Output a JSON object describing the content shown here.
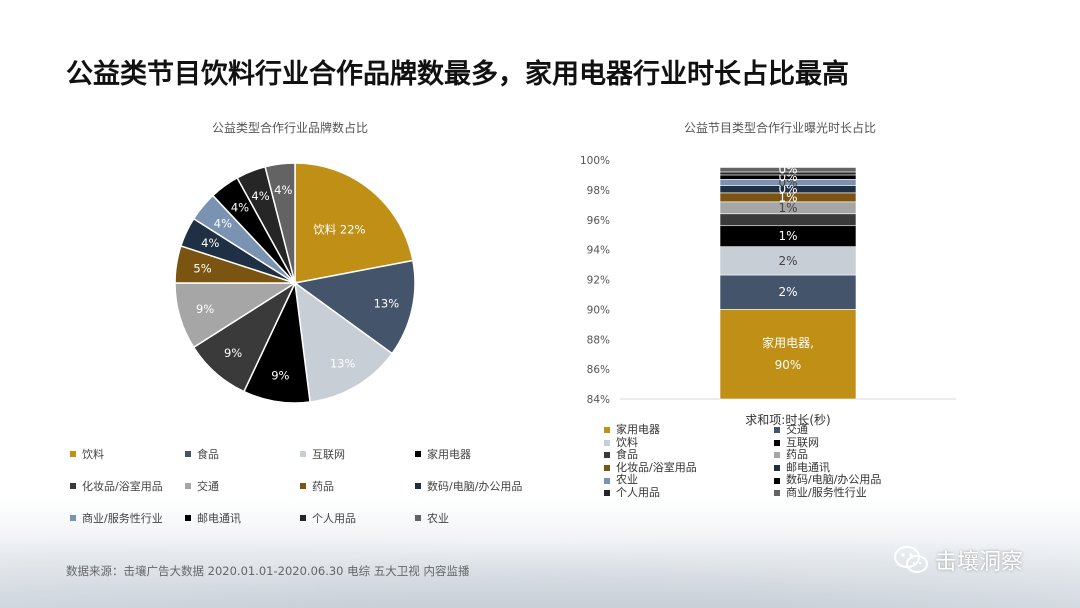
{
  "title": "公益类节目饮料行业合作品牌数最多，家用电器行业时长占比最高",
  "footer": "数据来源：击壤广告大数据 2020.01.01-2020.06.30 电综 五大卫视 内容监播",
  "watermark": "击壤洞察",
  "colors": {
    "饮料": "#bf8f16",
    "食品": "#44546a",
    "互联网": "#c7ced6",
    "家用电器": "#000000",
    "化妆品/浴室用品": "#3a3a3a",
    "交通": "#a6a6a6",
    "药品": "#7a5410",
    "数码/电脑/办公用品": "#1f3044",
    "商业/服务性行业": "#7a93b3",
    "邮电通讯": "#000000",
    "个人用品": "#262626",
    "农业": "#636363"
  },
  "chart_data": [
    {
      "type": "pie",
      "title": "公益类型合作行业品牌数占比",
      "slices": [
        {
          "name": "饮料",
          "value": 22,
          "label": "饮料 22%"
        },
        {
          "name": "食品",
          "value": 13,
          "label": "13%"
        },
        {
          "name": "互联网",
          "value": 13,
          "label": "13%"
        },
        {
          "name": "家用电器",
          "value": 9,
          "label": "9%"
        },
        {
          "name": "化妆品/浴室用品",
          "value": 9,
          "label": "9%"
        },
        {
          "name": "交通",
          "value": 9,
          "label": "9%"
        },
        {
          "name": "药品",
          "value": 5,
          "label": "5%"
        },
        {
          "name": "数码/电脑/办公用品",
          "value": 4,
          "label": "4%"
        },
        {
          "name": "商业/服务性行业",
          "value": 4,
          "label": "4%"
        },
        {
          "name": "邮电通讯",
          "value": 4,
          "label": "4%"
        },
        {
          "name": "个人用品",
          "value": 4,
          "label": "4%"
        },
        {
          "name": "农业",
          "value": 4,
          "label": "4%"
        }
      ],
      "legend": [
        "饮料",
        "食品",
        "互联网",
        "家用电器",
        "化妆品/浴室用品",
        "交通",
        "药品",
        "数码/电脑/办公用品",
        "商业/服务性行业",
        "邮电通讯",
        "个人用品",
        "农业"
      ]
    },
    {
      "type": "bar",
      "stacked": true,
      "title": "公益节目类型合作行业曝光时长占比",
      "xlabel": "求和项:时长(秒)",
      "ylim": [
        84,
        100
      ],
      "yticks": [
        "84%",
        "86%",
        "88%",
        "90%",
        "92%",
        "94%",
        "96%",
        "98%",
        "100%"
      ],
      "segments": [
        {
          "name": "家用电器",
          "color": "#bf8f16",
          "value": 90,
          "label": "家用电器,\n90%"
        },
        {
          "name": "交通",
          "color": "#44546a",
          "value": 2.3,
          "label": "2%"
        },
        {
          "name": "饮料",
          "color": "#c7ced6",
          "value": 1.9,
          "label": "2%"
        },
        {
          "name": "互联网",
          "color": "#000000",
          "value": 1.4,
          "label": "1%"
        },
        {
          "name": "食品",
          "color": "#3a3a3a",
          "value": 0.8,
          "label": ""
        },
        {
          "name": "药品",
          "color": "#a6a6a6",
          "value": 0.8,
          "label": "1%"
        },
        {
          "name": "化妆品/浴室用品",
          "color": "#7a5410",
          "value": 0.6,
          "label": "1%"
        },
        {
          "name": "邮电通讯",
          "color": "#1f3044",
          "value": 0.5,
          "label": "0%"
        },
        {
          "name": "农业",
          "color": "#7a93b3",
          "value": 0.4,
          "label": "0%"
        },
        {
          "name": "数码/电脑/办公用品",
          "color": "#000000",
          "value": 0.3,
          "label": "0%"
        },
        {
          "name": "个人用品",
          "color": "#262626",
          "value": 0.2,
          "label": ""
        },
        {
          "name": "商业/服务性行业",
          "color": "#636363",
          "value": 0.3,
          "label": "0%"
        }
      ],
      "legend": [
        "家用电器",
        "交通",
        "饮料",
        "互联网",
        "食品",
        "药品",
        "化妆品/浴室用品",
        "邮电通讯",
        "农业",
        "数码/电脑/办公用品",
        "个人用品",
        "商业/服务性行业"
      ]
    }
  ]
}
